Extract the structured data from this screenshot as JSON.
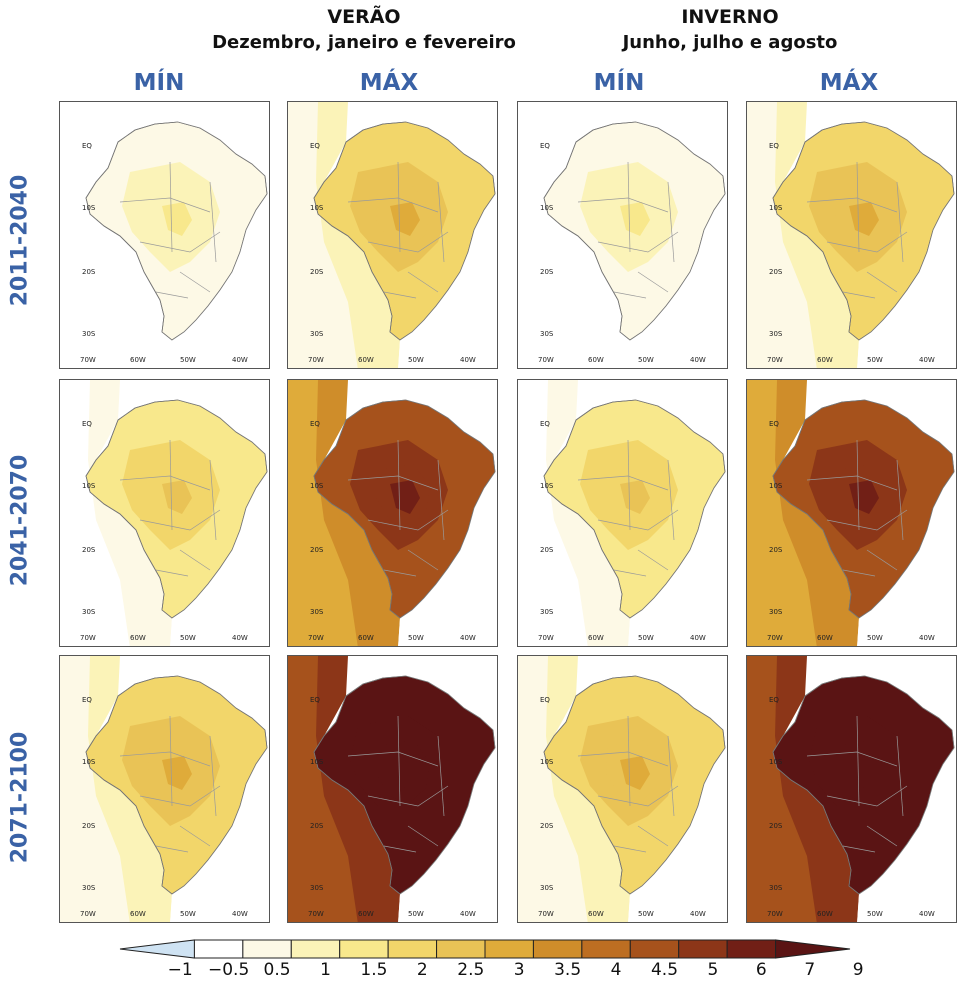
{
  "seasons": [
    {
      "name": "VERÃO",
      "months": "Dezembro, janeiro e fevereiro"
    },
    {
      "name": "INVERNO",
      "months": "Junho, julho e agosto"
    }
  ],
  "columns": [
    "MÍN",
    "MÁX",
    "MÍN",
    "MÁX"
  ],
  "rows": [
    "2011-2040",
    "2041-2070",
    "2071-2100"
  ],
  "axis": {
    "lat_labels": [
      "EQ",
      "10S",
      "20S",
      "30S"
    ],
    "lon_labels": [
      "70W",
      "60W",
      "50W",
      "40W"
    ]
  },
  "colorbar": {
    "ticks": [
      "−1",
      "−0.5",
      "0.5",
      "1",
      "1.5",
      "2",
      "2.5",
      "3",
      "3.5",
      "4",
      "4.5",
      "5",
      "6",
      "7",
      "9"
    ],
    "colors": [
      "#cfe3f3",
      "#ffffff",
      "#fdf9e6",
      "#fbf3b8",
      "#f8e88c",
      "#f2d66a",
      "#e9c356",
      "#dfab3a",
      "#cf8d2a",
      "#bd6e22",
      "#a6521c",
      "#8c3618",
      "#711f16",
      "#5a1414"
    ]
  },
  "map_levels": [
    [
      2,
      5,
      2,
      5
    ],
    [
      4,
      10,
      4,
      10
    ],
    [
      5,
      13,
      5,
      13
    ]
  ]
}
